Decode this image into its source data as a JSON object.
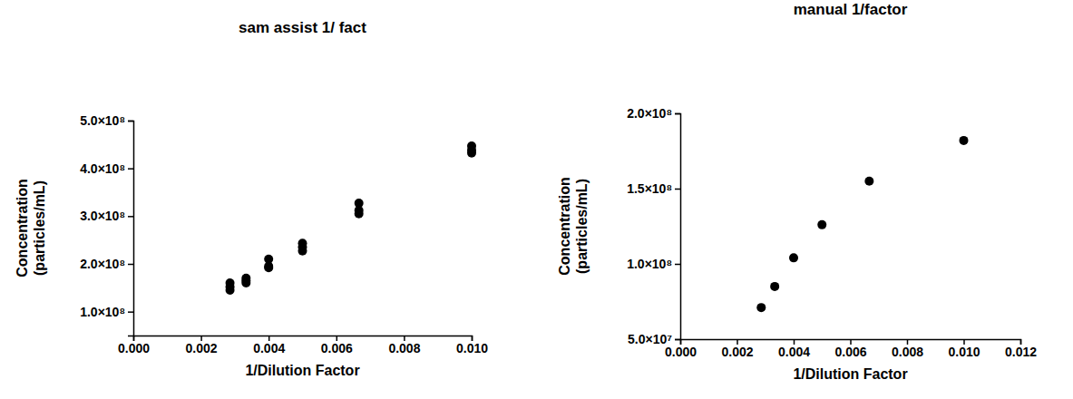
{
  "chart_data": [
    {
      "type": "scatter",
      "title": "sam assist 1/ fact",
      "x_label": "1/Dilution Factor",
      "y_label": "Concentration\n(particles/mL)",
      "x": [
        0.002857,
        0.002857,
        0.002857,
        0.003333,
        0.003333,
        0.003333,
        0.004,
        0.004,
        0.004,
        0.005,
        0.005,
        0.005,
        0.006667,
        0.006667,
        0.006667,
        0.01,
        0.01,
        0.01
      ],
      "values": [
        145000000,
        152000000,
        160000000,
        160000000,
        165000000,
        170000000,
        192000000,
        195000000,
        210000000,
        227000000,
        235000000,
        243000000,
        305000000,
        312000000,
        327000000,
        432000000,
        438000000,
        447000000
      ],
      "color": "#000000",
      "marker": "circle",
      "xlim": [
        0,
        0.01
      ],
      "xticks": [
        {
          "value": 0,
          "label": "0.000"
        },
        {
          "value": 0.002,
          "label": "0.002"
        },
        {
          "value": 0.004,
          "label": "0.004"
        },
        {
          "value": 0.006,
          "label": "0.006"
        },
        {
          "value": 0.008,
          "label": "0.008"
        },
        {
          "value": 0.01,
          "label": "0.010"
        }
      ],
      "ylim": [
        50000000,
        500000000
      ],
      "yticks": [
        {
          "value": 100000000,
          "label": "1.0×10⁸"
        },
        {
          "value": 200000000,
          "label": "2.0×10⁸"
        },
        {
          "value": 300000000,
          "label": "3.0×10⁸"
        },
        {
          "value": 400000000,
          "label": "4.0×10⁸"
        },
        {
          "value": 500000000,
          "label": "5.0×10⁸"
        }
      ],
      "grid": false
    },
    {
      "type": "scatter",
      "title": "manual 1/factor",
      "x_label": "1/Dilution Factor",
      "y_label": "Concentration\n(particles/mL)",
      "x": [
        0.002857,
        0.003333,
        0.004,
        0.005,
        0.006667,
        0.01
      ],
      "values": [
        71000000,
        85000000,
        104000000,
        126000000,
        155000000,
        182000000
      ],
      "color": "#000000",
      "marker": "circle",
      "xlim": [
        0,
        0.012
      ],
      "xticks": [
        {
          "value": 0,
          "label": "0.000"
        },
        {
          "value": 0.002,
          "label": "0.002"
        },
        {
          "value": 0.004,
          "label": "0.004"
        },
        {
          "value": 0.006,
          "label": "0.006"
        },
        {
          "value": 0.008,
          "label": "0.008"
        },
        {
          "value": 0.01,
          "label": "0.010"
        },
        {
          "value": 0.012,
          "label": "0.012"
        }
      ],
      "ylim": [
        50000000,
        200000000
      ],
      "yticks": [
        {
          "value": 50000000,
          "label": "5.0×10⁷"
        },
        {
          "value": 100000000,
          "label": "1.0×10⁸"
        },
        {
          "value": 150000000,
          "label": "1.5×10⁸"
        },
        {
          "value": 200000000,
          "label": "2.0×10⁸"
        }
      ],
      "grid": false
    }
  ]
}
